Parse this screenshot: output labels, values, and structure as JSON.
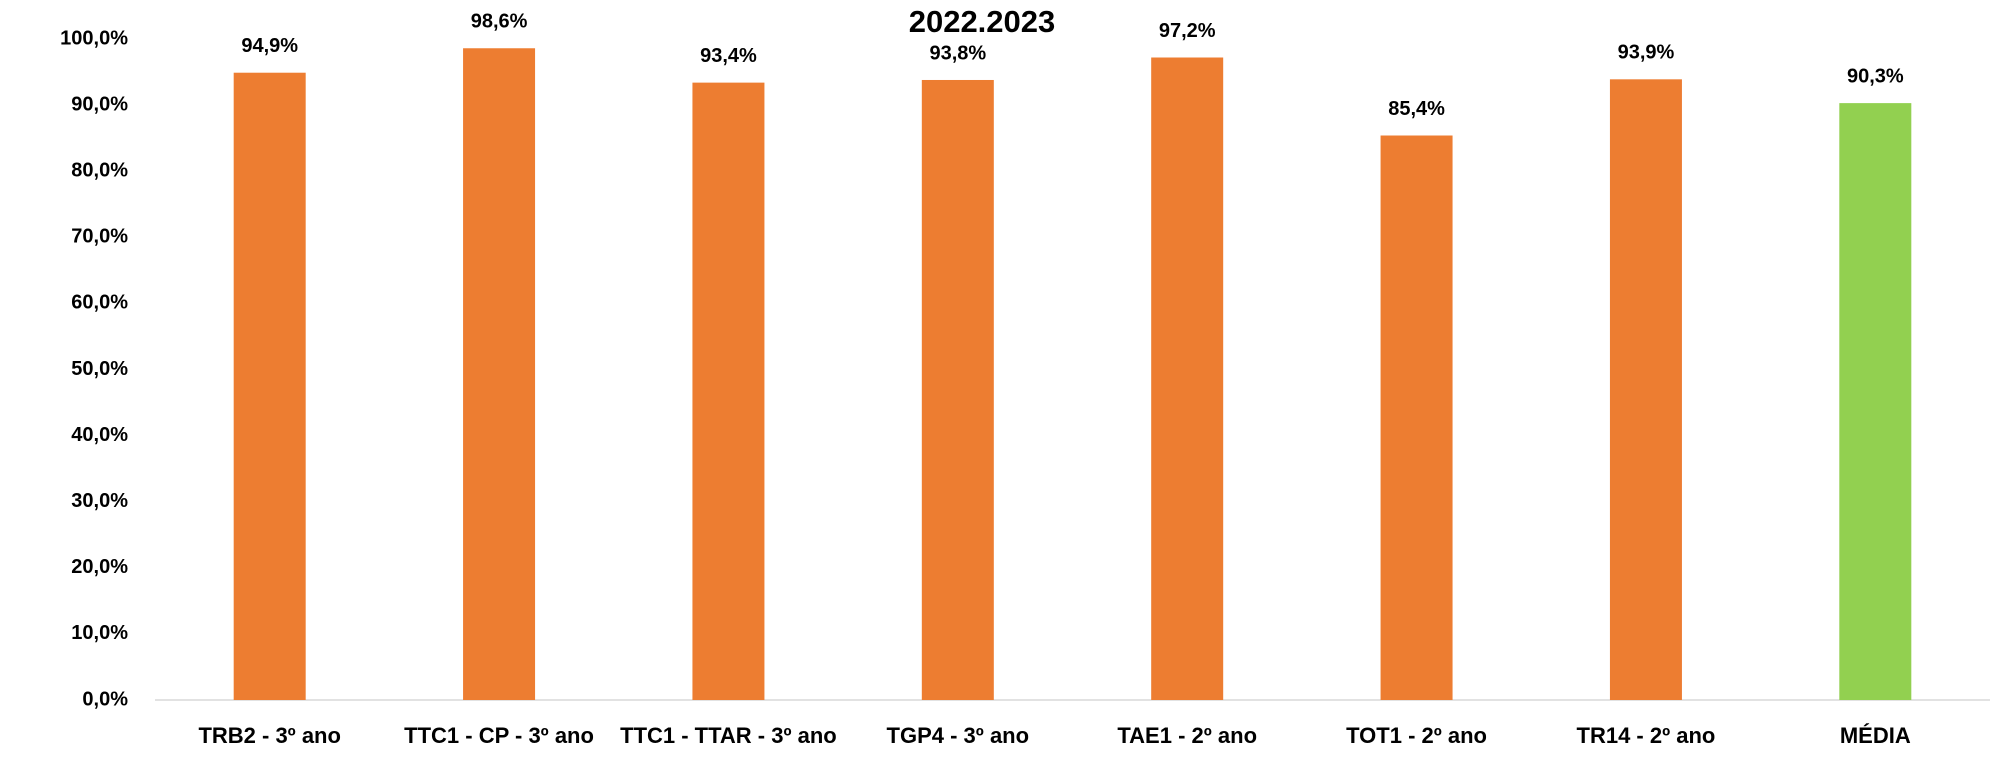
{
  "chart_data": {
    "type": "bar",
    "title": "2022.2023",
    "categories": [
      "TRB2 - 3º ano",
      "TTC1 - CP - 3º ano",
      "TTC1 - TTAR - 3º ano",
      "TGP4 - 3º ano",
      "TAE1 - 2º ano",
      "TOT1 - 2º ano",
      "TR14 - 2º ano",
      "MÉDIA"
    ],
    "values": [
      94.9,
      98.6,
      93.4,
      93.8,
      97.2,
      85.4,
      93.9,
      90.3
    ],
    "value_labels": [
      "94,9%",
      "98,6%",
      "93,4%",
      "93,8%",
      "97,2%",
      "85,4%",
      "93,9%",
      "90,3%"
    ],
    "colors": [
      "#ED7D31",
      "#ED7D31",
      "#ED7D31",
      "#ED7D31",
      "#ED7D31",
      "#ED7D31",
      "#ED7D31",
      "#92D050"
    ],
    "ylim": [
      0,
      100
    ],
    "yticks": [
      {
        "value": 0,
        "label": "0,0%"
      },
      {
        "value": 10,
        "label": "10,0%"
      },
      {
        "value": 20,
        "label": "20,0%"
      },
      {
        "value": 30,
        "label": "30,0%"
      },
      {
        "value": 40,
        "label": "40,0%"
      },
      {
        "value": 50,
        "label": "50,0%"
      },
      {
        "value": 60,
        "label": "60,0%"
      },
      {
        "value": 70,
        "label": "70,0%"
      },
      {
        "value": 80,
        "label": "80,0%"
      },
      {
        "value": 90,
        "label": "90,0%"
      },
      {
        "value": 100,
        "label": "100,0%"
      }
    ],
    "grid": false
  }
}
